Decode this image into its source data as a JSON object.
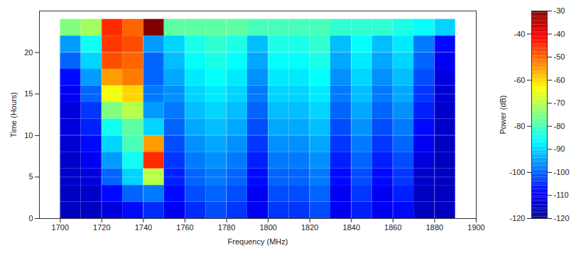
{
  "chart_data": {
    "type": "heatmap",
    "x_label": "Frequency (MHz)",
    "y_label": "Time (Hours)",
    "z_label": "Power (dB)",
    "xlim": [
      1690,
      1900
    ],
    "xticks": [
      1700,
      1720,
      1740,
      1760,
      1780,
      1800,
      1820,
      1840,
      1860,
      1880,
      1900
    ],
    "ylim": [
      0,
      25
    ],
    "yticks": [
      0,
      5,
      10,
      15,
      20
    ],
    "zticks": [
      -40,
      -60,
      -80,
      -100,
      -120
    ],
    "frequency_edges": [
      1700,
      1710,
      1720,
      1730,
      1740,
      1750,
      1760,
      1770,
      1780,
      1790,
      1800,
      1810,
      1820,
      1830,
      1840,
      1850,
      1860,
      1870,
      1880,
      1890
    ],
    "time_edges": [
      0,
      2,
      4,
      6,
      8,
      10,
      12,
      14,
      16,
      18,
      20,
      22,
      24
    ],
    "power": [
      [
        -115,
        -115,
        -112,
        -108,
        -105,
        -110,
        -105,
        -102,
        -104,
        -110,
        -104,
        -104,
        -102,
        -110,
        -106,
        -110,
        -108,
        -115,
        -115
      ],
      [
        -115,
        -114,
        -108,
        -100,
        -98,
        -108,
        -102,
        -100,
        -102,
        -110,
        -102,
        -102,
        -100,
        -110,
        -104,
        -110,
        -106,
        -115,
        -115
      ],
      [
        -114,
        -112,
        -100,
        -90,
        -70,
        -106,
        -100,
        -98,
        -100,
        -108,
        -100,
        -100,
        -98,
        -108,
        -102,
        -108,
        -104,
        -114,
        -115
      ],
      [
        -114,
        -110,
        -95,
        -85,
        -45,
        -104,
        -98,
        -96,
        -98,
        -106,
        -98,
        -98,
        -96,
        -106,
        -100,
        -106,
        -102,
        -112,
        -115
      ],
      [
        -113,
        -108,
        -90,
        -80,
        -55,
        -102,
        -96,
        -94,
        -96,
        -104,
        -96,
        -96,
        -94,
        -104,
        -98,
        -104,
        -100,
        -110,
        -115
      ],
      [
        -112,
        -106,
        -85,
        -78,
        -90,
        -100,
        -94,
        -92,
        -94,
        -102,
        -94,
        -94,
        -92,
        -102,
        -96,
        -102,
        -98,
        -108,
        -114
      ],
      [
        -112,
        -104,
        -75,
        -70,
        -95,
        -98,
        -92,
        -90,
        -92,
        -100,
        -92,
        -92,
        -90,
        -100,
        -94,
        -100,
        -96,
        -106,
        -114
      ],
      [
        -110,
        -100,
        -65,
        -60,
        -98,
        -96,
        -90,
        -88,
        -90,
        -98,
        -90,
        -90,
        -88,
        -98,
        -92,
        -98,
        -94,
        -104,
        -113
      ],
      [
        -108,
        -95,
        -55,
        -52,
        -100,
        -94,
        -88,
        -86,
        -88,
        -96,
        -88,
        -88,
        -86,
        -96,
        -90,
        -96,
        -92,
        -102,
        -112
      ],
      [
        -100,
        -90,
        -48,
        -50,
        -100,
        -92,
        -86,
        -84,
        -86,
        -94,
        -86,
        -86,
        -84,
        -94,
        -88,
        -94,
        -90,
        -100,
        -110
      ],
      [
        -95,
        -85,
        -46,
        -48,
        -95,
        -90,
        -84,
        -82,
        -84,
        -92,
        -84,
        -84,
        -82,
        -92,
        -86,
        -92,
        -88,
        -98,
        -108
      ],
      [
        -75,
        -72,
        -45,
        -50,
        -30,
        -78,
        -78,
        -78,
        -78,
        -80,
        -80,
        -80,
        -80,
        -82,
        -82,
        -82,
        -84,
        -86,
        -90
      ]
    ],
    "colorbar": {
      "range": [
        -120,
        -30
      ],
      "ticks": [
        -30,
        -40,
        -50,
        -60,
        -70,
        -80,
        -90,
        -100,
        -110,
        -120
      ]
    }
  }
}
